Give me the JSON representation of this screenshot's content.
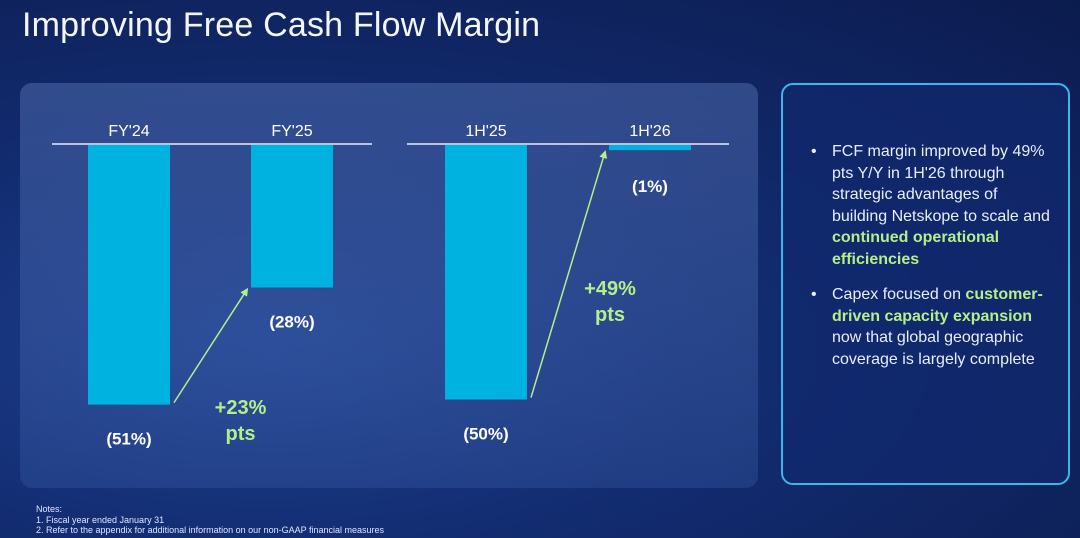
{
  "title": "Improving Free Cash Flow Margin",
  "colors": {
    "bar": "#00b2e0",
    "arrow": "#b5ee8a",
    "text": "#ffffff",
    "callout_border": "#3bb8e8"
  },
  "chart_data": [
    {
      "type": "bar",
      "categories": [
        "FY'24",
        "FY'25"
      ],
      "values": [
        -51,
        -28
      ],
      "data_labels": [
        "(51%)",
        "(28%)"
      ],
      "change_label": [
        "+23%",
        "pts"
      ],
      "ylim": [
        -55,
        0
      ],
      "axis": "top"
    },
    {
      "type": "bar",
      "categories": [
        "1H'25",
        "1H'26"
      ],
      "values": [
        -50,
        -1
      ],
      "data_labels": [
        "(50%)",
        "(1%)"
      ],
      "change_label": [
        "+49%",
        "pts"
      ],
      "ylim": [
        -55,
        0
      ],
      "axis": "top"
    }
  ],
  "callout": {
    "bullet_symbol": "•",
    "bullets": [
      [
        {
          "text": "FCF margin improved by 49% pts Y/Y in 1H'26 through strategic advantages of building Netskope to scale and ",
          "highlight": false
        },
        {
          "text": "continued operational efficiencies",
          "highlight": true
        }
      ],
      [
        {
          "text": "Capex focused on ",
          "highlight": false
        },
        {
          "text": "customer-driven capacity expansion",
          "highlight": true
        },
        {
          "text": " now that global geographic coverage is largely complete",
          "highlight": false
        }
      ]
    ]
  },
  "notes": {
    "heading": "Notes:",
    "items": [
      "1. Fiscal year ended January 31",
      "2. Refer to the appendix for additional information on our non-GAAP financial measures"
    ]
  }
}
